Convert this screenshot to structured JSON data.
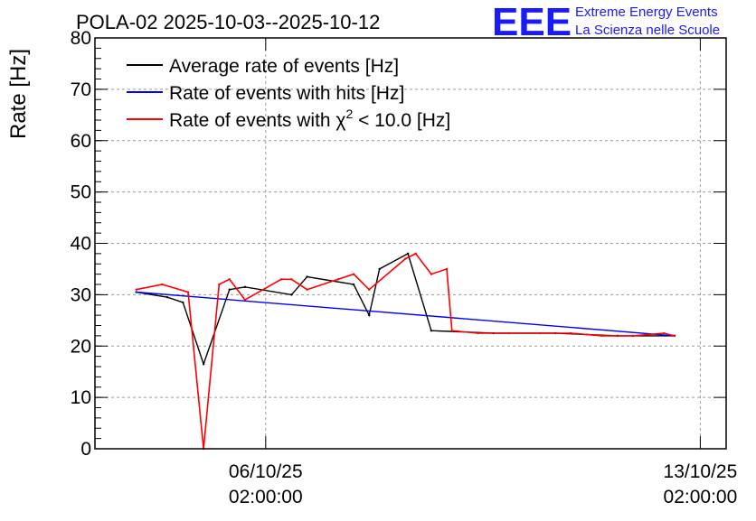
{
  "chart_data": {
    "type": "line",
    "title": "POLA-02 2025-10-03--2025-10-12",
    "ylabel": "Rate [Hz]",
    "xlabel": "",
    "ylim": [
      0,
      80
    ],
    "yticks": [
      0,
      10,
      20,
      30,
      40,
      50,
      60,
      70,
      80
    ],
    "xrange": [
      "2025-10-03 08:00",
      "2025-10-13 12:00"
    ],
    "xticks": [
      {
        "value": "2025-10-06 02:00",
        "label_date": "06/10/25",
        "label_time": "02:00:00"
      },
      {
        "value": "2025-10-13 02:00",
        "label_date": "13/10/25",
        "label_time": "02:00:00"
      }
    ],
    "grid": true,
    "legend_position": "top-left",
    "series": [
      {
        "name": "Average rate of events [Hz]",
        "color": "#000000",
        "x": [
          "2025-10-04 00:00",
          "2025-10-04 12:00",
          "2025-10-04 18:00",
          "2025-10-05 02:00",
          "2025-10-05 12:00",
          "2025-10-05 18:00",
          "2025-10-06 12:00",
          "2025-10-06 18:00",
          "2025-10-07 12:00",
          "2025-10-07 18:00",
          "2025-10-07 22:00",
          "2025-10-08 09:00",
          "2025-10-08 18:00",
          "2025-10-09 18:00",
          "2025-10-10 18:00",
          "2025-10-11 18:00",
          "2025-10-12 16:00"
        ],
        "y": [
          30.5,
          29.5,
          28.5,
          16.5,
          31,
          31.5,
          30,
          33.5,
          32,
          26,
          35,
          38,
          23,
          22.5,
          22.5,
          22,
          22
        ]
      },
      {
        "name": "Rate of events with hits [Hz]",
        "color": "#0000ff",
        "x": [
          "2025-10-04 00:00",
          "2025-10-12 16:00"
        ],
        "y": [
          30.5,
          22
        ]
      },
      {
        "name": "Rate of events with χ² < 10.0 [Hz]",
        "color": "#ff0000",
        "x": [
          "2025-10-04 00:00",
          "2025-10-04 10:00",
          "2025-10-04 20:00",
          "2025-10-05 02:00",
          "2025-10-05 08:00",
          "2025-10-05 12:00",
          "2025-10-05 18:00",
          "2025-10-06 08:00",
          "2025-10-06 12:00",
          "2025-10-06 18:00",
          "2025-10-07 06:00",
          "2025-10-07 12:00",
          "2025-10-07 18:00",
          "2025-10-08 08:00",
          "2025-10-08 12:00",
          "2025-10-08 18:00",
          "2025-10-09 00:00",
          "2025-10-09 02:00",
          "2025-10-09 12:00",
          "2025-10-10 00:00",
          "2025-10-10 12:00",
          "2025-10-11 00:00",
          "2025-10-11 12:00",
          "2025-10-12 00:00",
          "2025-10-12 12:00",
          "2025-10-12 16:00"
        ],
        "y": [
          31,
          32,
          30.5,
          0,
          32,
          33,
          29,
          33,
          33,
          31,
          33,
          34,
          31,
          37,
          38,
          34,
          35,
          23,
          22.5,
          22.5,
          22.5,
          22.5,
          22,
          22,
          22.5,
          22
        ]
      }
    ],
    "legend_entries": [
      {
        "text": "Average rate of events [Hz]",
        "color": "#000000"
      },
      {
        "text": "Rate of events with hits [Hz]",
        "color": "#0000ff"
      },
      {
        "text_prefix": "Rate of events with χ",
        "text_sup": "2",
        "text_suffix": " < 10.0 [Hz]",
        "color": "#ff0000"
      }
    ]
  },
  "logo": {
    "mark": "EEE",
    "line1": "Extreme Energy Events",
    "line2": "La Scienza nelle Scuole",
    "color": "#1a1aff"
  }
}
